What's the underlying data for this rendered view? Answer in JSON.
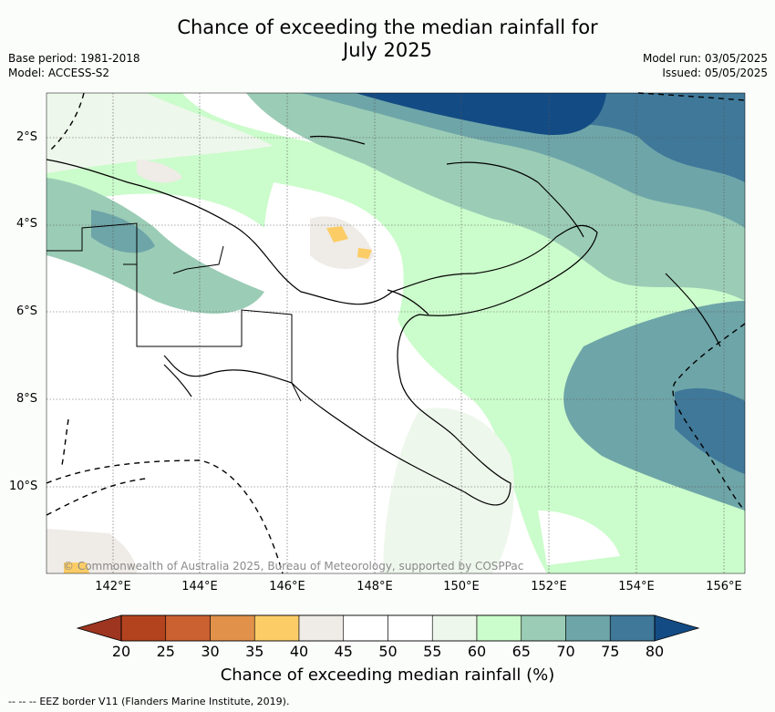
{
  "header": {
    "title_line1": "Chance of exceeding the median rainfall for",
    "title_line2": "July 2025",
    "base_period": "Base period: 1981-2018",
    "model": "Model: ACCESS-S2",
    "model_run": "Model run: 03/05/2025",
    "issued": "Issued: 05/05/2025"
  },
  "axes": {
    "lat_ticks": [
      "2°S",
      "4°S",
      "6°S",
      "8°S",
      "10°S"
    ],
    "lon_ticks": [
      "142°E",
      "144°E",
      "146°E",
      "148°E",
      "150°E",
      "152°E",
      "154°E",
      "156°E"
    ]
  },
  "colorbar": {
    "label": "Chance of exceeding median rainfall (%)",
    "ticks": [
      "20",
      "25",
      "30",
      "35",
      "40",
      "45",
      "50",
      "55",
      "60",
      "65",
      "70",
      "75",
      "80"
    ],
    "colors": [
      "#b3431f",
      "#cb6130",
      "#e1914a",
      "#fccd67",
      "#efebe7",
      "#ffffff",
      "#ffffff",
      "#eef7ec",
      "#cbfccb",
      "#9bccb6",
      "#6ea5a8",
      "#3f7899"
    ],
    "under_color": "#9d3520",
    "over_color": "#134b84"
  },
  "credit": "© Commonwealth of Australia 2025, Bureau of Meteorology, supported by COSPPac",
  "footer": "EEZ border V11 (Flanders Marine Institute, 2019).",
  "legend_dash": "-- -- --"
}
